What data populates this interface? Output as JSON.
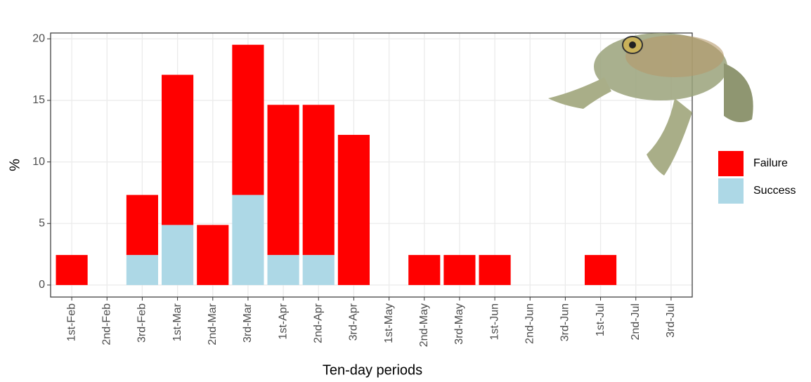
{
  "chart_data": {
    "type": "bar",
    "stacked": true,
    "x_label": "Ten-day periods",
    "y_label": "%",
    "categories": [
      "1st-Feb",
      "2nd-Feb",
      "3rd-Feb",
      "1st-Mar",
      "2nd-Mar",
      "3rd-Mar",
      "1st-Apr",
      "2nd-Apr",
      "3rd-Apr",
      "1st-May",
      "2nd-May",
      "3rd-May",
      "1st-Jun",
      "2nd-Jun",
      "3rd-Jun",
      "1st-Jul",
      "2nd-Jul",
      "3rd-Jul"
    ],
    "series": [
      {
        "name": "Failure",
        "color": "#ff0000",
        "values": [
          2.44,
          0,
          4.88,
          12.2,
          4.88,
          12.2,
          12.2,
          12.2,
          12.2,
          0,
          2.44,
          2.44,
          2.44,
          0,
          0,
          2.44,
          0,
          0
        ]
      },
      {
        "name": "Success",
        "color": "#add8e6",
        "values": [
          0,
          0,
          2.44,
          4.88,
          0,
          7.32,
          2.44,
          2.44,
          0,
          0,
          0,
          0,
          0,
          0,
          0,
          0,
          0,
          0
        ]
      }
    ],
    "ylim": [
      -0.975,
      20.475
    ],
    "yticks": [
      0,
      5,
      10,
      15,
      20
    ],
    "grid": true,
    "legend": "right"
  }
}
